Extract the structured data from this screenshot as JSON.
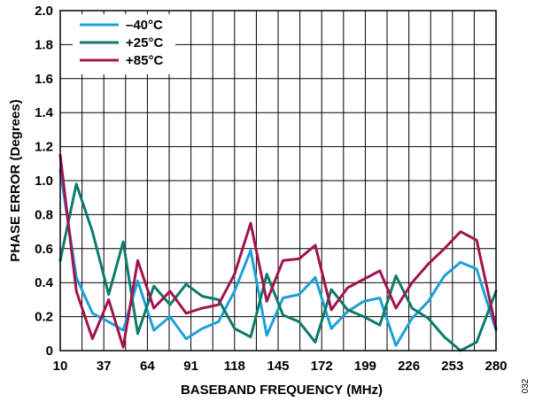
{
  "chart_data": {
    "type": "line",
    "xlabel": "BASEBAND FREQUENCY (MHz)",
    "ylabel": "PHASE ERROR (Degrees)",
    "xlim": [
      10,
      280
    ],
    "ylim": [
      0,
      2.0
    ],
    "x_ticks": [
      10,
      37,
      64,
      91,
      118,
      145,
      172,
      199,
      226,
      253,
      280
    ],
    "y_ticks": [
      0,
      0.2,
      0.4,
      0.6,
      0.8,
      1.0,
      1.2,
      1.4,
      1.6,
      1.8,
      2.0
    ],
    "y_tick_labels": [
      "0",
      "0.2",
      "0.4",
      "0.6",
      "0.8",
      "1.0",
      "1.2",
      "1.4",
      "1.6",
      "1.8",
      "2.0"
    ],
    "x_grid_step": 13.5,
    "grid": true,
    "legend_position": "top-left",
    "series": [
      {
        "name": "–40°C",
        "color": "#1ba1d9",
        "x": [
          10,
          20,
          30,
          40,
          49,
          58,
          68,
          78,
          88,
          98,
          108,
          118,
          128,
          138,
          148,
          158,
          168,
          178,
          188,
          198,
          208,
          218,
          228,
          238,
          248,
          258,
          268,
          280
        ],
        "y": [
          1.06,
          0.43,
          0.22,
          0.17,
          0.12,
          0.41,
          0.12,
          0.2,
          0.07,
          0.13,
          0.17,
          0.35,
          0.59,
          0.09,
          0.31,
          0.33,
          0.43,
          0.13,
          0.23,
          0.29,
          0.31,
          0.03,
          0.19,
          0.29,
          0.44,
          0.52,
          0.48,
          0.12
        ]
      },
      {
        "name": "+25°C",
        "color": "#0e7a6b",
        "x": [
          10,
          20,
          30,
          40,
          49,
          58,
          68,
          78,
          88,
          98,
          108,
          118,
          128,
          138,
          148,
          158,
          168,
          178,
          188,
          198,
          208,
          218,
          228,
          238,
          248,
          258,
          268,
          280
        ],
        "y": [
          0.53,
          0.98,
          0.7,
          0.33,
          0.64,
          0.1,
          0.38,
          0.27,
          0.39,
          0.32,
          0.3,
          0.13,
          0.08,
          0.45,
          0.21,
          0.17,
          0.05,
          0.36,
          0.24,
          0.2,
          0.15,
          0.44,
          0.25,
          0.19,
          0.08,
          0.0,
          0.05,
          0.35
        ]
      },
      {
        "name": "+85°C",
        "color": "#a3134f",
        "x": [
          10,
          20,
          30,
          40,
          49,
          58,
          68,
          78,
          88,
          98,
          108,
          118,
          128,
          138,
          148,
          158,
          168,
          178,
          188,
          198,
          208,
          218,
          228,
          238,
          248,
          258,
          268,
          280
        ],
        "y": [
          1.15,
          0.35,
          0.07,
          0.3,
          0.02,
          0.53,
          0.25,
          0.35,
          0.22,
          0.25,
          0.27,
          0.45,
          0.75,
          0.29,
          0.53,
          0.54,
          0.62,
          0.24,
          0.37,
          0.42,
          0.47,
          0.25,
          0.4,
          0.51,
          0.6,
          0.7,
          0.65,
          0.13
        ]
      }
    ]
  },
  "figure_id": "032"
}
